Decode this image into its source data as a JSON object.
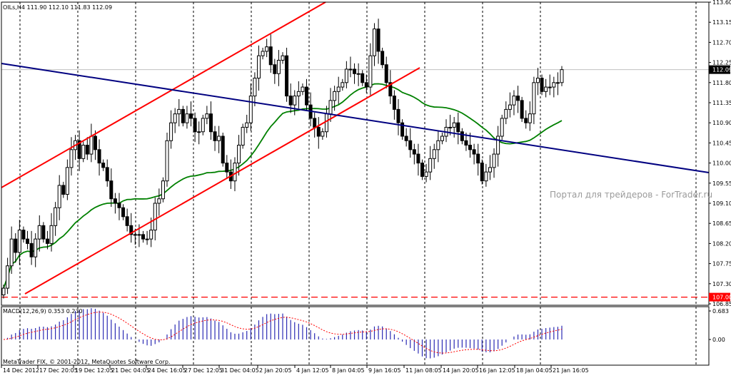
{
  "main_header": "OILs,H4  111.90 112.10 111.83 112.09",
  "macd_header": "MACD(12,26,9) 0.353 0.230",
  "watermark": "Портал для трейдеров - ForTrader.ru",
  "copyright": "MetaTrader FIX, © 2001-2012, MetaQuotes Software Corp.",
  "colors": {
    "background": "#ffffff",
    "candle": "#000000",
    "channel": "#ff0000",
    "trendline": "#000080",
    "moving_average": "#008000",
    "macd_histogram": "#2b2bb4",
    "macd_signal": "#ff0000",
    "price_label_bg": "#000000",
    "level_label_bg": "#ff0000"
  },
  "chart_data": [
    {
      "type": "candlestick",
      "symbol": "OILs",
      "timeframe": "H4",
      "last_bar": {
        "open": 111.9,
        "high": 112.1,
        "low": 111.83,
        "close": 112.09
      },
      "current_price": "112.09",
      "ylim": [
        106.85,
        113.6
      ],
      "y_ticks": [
        "113.60",
        "113.15",
        "112.70",
        "112.25",
        "111.80",
        "111.35",
        "110.90",
        "110.45",
        "110.00",
        "109.55",
        "109.10",
        "108.65",
        "108.20",
        "107.75",
        "107.30",
        "106.85"
      ],
      "x_labels": [
        "14 Dec 2012",
        "17 Dec 20:05",
        "19 Dec 12:05",
        "21 Dec 04:05",
        "24 Dec 16:05",
        "27 Dec 12:05",
        "31 Dec 04:05",
        "2 Jan 20:05",
        "4 Jan 12:05",
        "8 Jan 04:05",
        "9 Jan 16:05",
        "11 Jan 08:05",
        "14 Jan 20:05",
        "16 Jan 12:05",
        "18 Jan 04:05",
        "21 Jan 16:05"
      ],
      "grid": "vertical dashed separators",
      "horizontal_level": {
        "value": "107.00",
        "style": "dashed",
        "color": "#ff0000"
      },
      "closes": [
        107.2,
        107.7,
        108.3,
        108.0,
        108.5,
        108.3,
        108.2,
        107.9,
        108.3,
        108.6,
        108.3,
        108.2,
        108.6,
        109.0,
        109.5,
        109.3,
        109.9,
        110.3,
        110.5,
        110.1,
        110.4,
        110.2,
        110.6,
        110.3,
        110.0,
        109.9,
        109.6,
        109.2,
        109.1,
        109.0,
        108.8,
        108.6,
        108.4,
        108.4,
        108.4,
        108.3,
        108.3,
        108.5,
        109.1,
        109.2,
        109.6,
        110.5,
        110.9,
        111.1,
        111.2,
        110.9,
        111.1,
        111.0,
        110.7,
        110.7,
        111.0,
        111.1,
        110.7,
        110.5,
        110.6,
        110.0,
        109.8,
        109.6,
        110.0,
        110.4,
        110.8,
        110.9,
        111.5,
        111.9,
        112.4,
        112.5,
        112.6,
        112.2,
        112.0,
        112.3,
        112.4,
        111.5,
        111.3,
        111.5,
        111.6,
        111.7,
        111.3,
        111.0,
        110.8,
        110.6,
        110.7,
        111.1,
        111.4,
        111.6,
        111.7,
        111.8,
        112.1,
        112.1,
        112.0,
        112.0,
        111.8,
        111.7,
        112.4,
        113.0,
        112.5,
        112.2,
        111.8,
        111.5,
        111.2,
        110.9,
        110.6,
        110.5,
        110.3,
        110.2,
        110.0,
        109.7,
        109.8,
        110.1,
        110.3,
        110.5,
        110.6,
        110.8,
        110.8,
        110.9,
        110.7,
        110.5,
        110.4,
        110.3,
        110.2,
        110.0,
        109.6,
        109.8,
        109.9,
        110.2,
        110.6,
        111.0,
        111.2,
        111.3,
        111.5,
        111.4,
        111.0,
        110.9,
        111.1,
        111.8,
        111.9,
        111.6,
        111.7,
        111.7,
        111.8,
        111.8,
        112.09
      ]
    },
    {
      "type": "macd",
      "params": "12,26,9",
      "main": 0.353,
      "signal": 0.23,
      "ylim": [
        -0.38,
        0.683
      ],
      "y_ticks": [
        "0.683",
        "0.00"
      ]
    }
  ]
}
